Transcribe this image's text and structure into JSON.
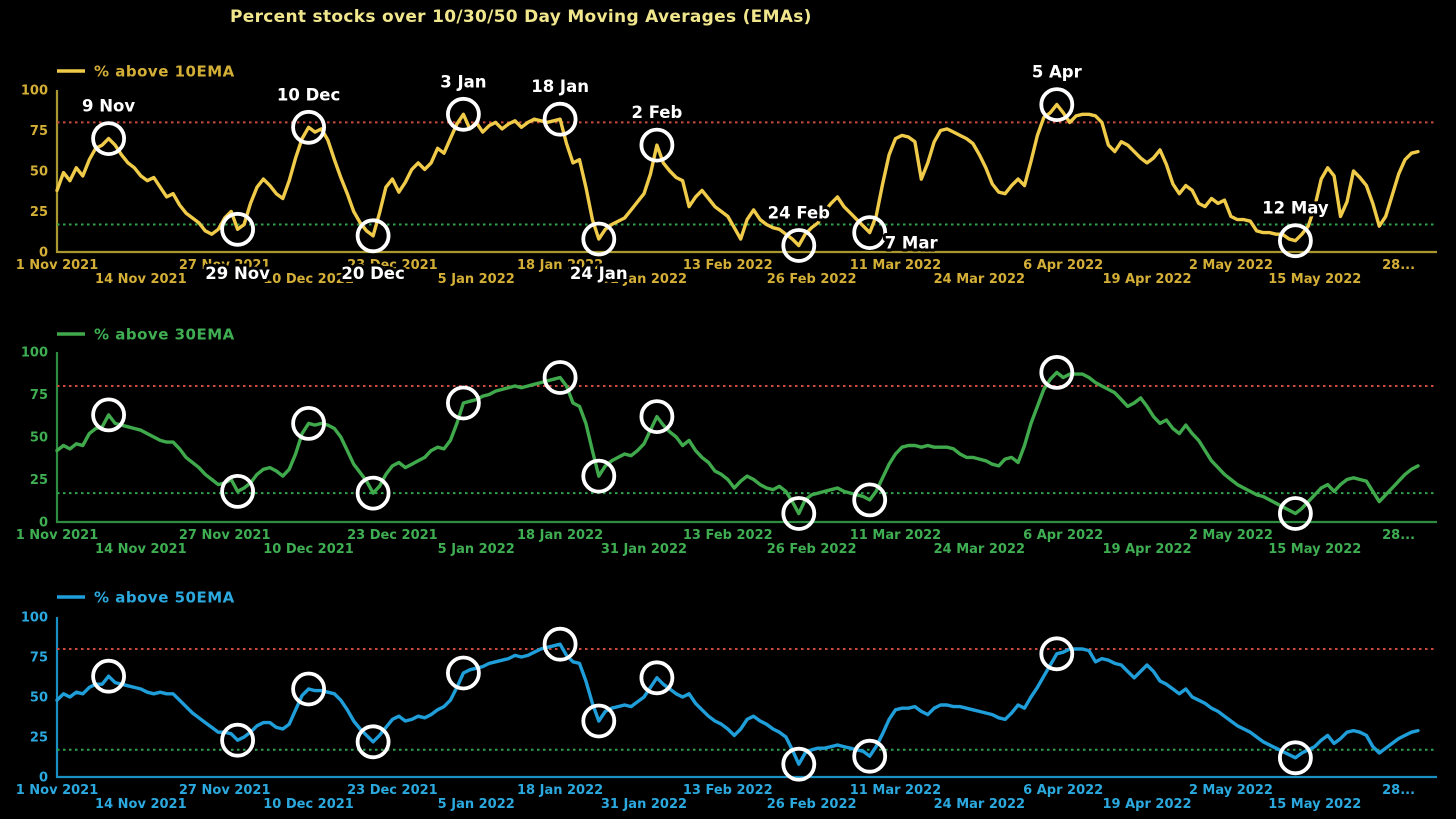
{
  "page": {
    "background": "#000000"
  },
  "title": {
    "text": "Percent stocks over 10/30/50 Day Moving Averages (EMAs)",
    "color": "#F0E68C"
  },
  "axis": {
    "x_tick_labels": [
      "1 Nov 2021",
      "14 Nov 2021",
      "27 Nov 2021",
      "10 Dec 2021",
      "23 Dec 2021",
      "5 Jan 2022",
      "18 Jan 2022",
      "31 Jan 2022",
      "13 Feb 2022",
      "26 Feb 2022",
      "11 Mar 2022",
      "24 Mar 2022",
      "6 Apr 2022",
      "19 Apr 2022",
      "2 May 2022",
      "15 May 2022",
      "28..."
    ],
    "x_tick_interval_days": 13,
    "y_tick_labels": [
      "0",
      "25",
      "50",
      "75",
      "100"
    ],
    "ylim": [
      0,
      100
    ]
  },
  "thresholds": {
    "upper": 80,
    "lower": 17,
    "upper_color": "#CC4A3D",
    "lower_color": "#2FA34D"
  },
  "markers": {
    "days": [
      8,
      28,
      39,
      49,
      63,
      78,
      84,
      93,
      115,
      126,
      155,
      192
    ],
    "dates": [
      "9 Nov",
      "29 Nov",
      "10 Dec",
      "20 Dec",
      "3 Jan",
      "18 Jan",
      "24 Jan",
      "2 Feb",
      "24 Feb",
      "7 Mar",
      "5 Apr",
      "12 May"
    ],
    "color": "#FFFFFF"
  },
  "annotation_color": "#FFFFFF",
  "chart_data": [
    {
      "type": "line",
      "name": "10ema",
      "legend": "% above 10EMA",
      "line_color": "#F0CB4A",
      "label_color": "#D4AF37",
      "axis_color": "#A9982F",
      "x_start": "1 Nov 2021",
      "ylim": [
        0,
        100
      ],
      "annotations": [
        {
          "label": "9 Nov",
          "day": 8,
          "pos": "above"
        },
        {
          "label": "29 Nov",
          "day": 28,
          "pos": "below"
        },
        {
          "label": "10 Dec",
          "day": 39,
          "pos": "above"
        },
        {
          "label": "20 Dec",
          "day": 49,
          "pos": "below"
        },
        {
          "label": "3 Jan",
          "day": 63,
          "pos": "above"
        },
        {
          "label": "18 Jan",
          "day": 78,
          "pos": "above"
        },
        {
          "label": "24 Jan",
          "day": 84,
          "pos": "below"
        },
        {
          "label": "2 Feb",
          "day": 93,
          "pos": "above"
        },
        {
          "label": "24 Feb",
          "day": 115,
          "pos": "above"
        },
        {
          "label": "7 Mar",
          "day": 126,
          "pos": "right"
        },
        {
          "label": "5 Apr",
          "day": 155,
          "pos": "above"
        },
        {
          "label": "12 May",
          "day": 192,
          "pos": "above"
        }
      ],
      "values": [
        38,
        49,
        44,
        52,
        47,
        57,
        64,
        66,
        70,
        66,
        60,
        55,
        52,
        47,
        44,
        46,
        40,
        34,
        36,
        29,
        24,
        21,
        18,
        13,
        11,
        14,
        21,
        25,
        14,
        17,
        30,
        40,
        45,
        41,
        36,
        33,
        44,
        58,
        70,
        77,
        74,
        76,
        69,
        57,
        46,
        36,
        25,
        18,
        13,
        10,
        24,
        40,
        45,
        37,
        43,
        51,
        55,
        51,
        55,
        64,
        61,
        70,
        79,
        85,
        76,
        80,
        74,
        78,
        80,
        76,
        79,
        81,
        77,
        80,
        82,
        81,
        80,
        81,
        82,
        67,
        55,
        57,
        40,
        20,
        8,
        14,
        17,
        19,
        21,
        26,
        31,
        36,
        48,
        66,
        55,
        50,
        46,
        44,
        28,
        34,
        38,
        33,
        28,
        25,
        22,
        15,
        8,
        20,
        26,
        20,
        17,
        15,
        14,
        11,
        8,
        4,
        11,
        15,
        18,
        25,
        30,
        34,
        28,
        24,
        20,
        16,
        12,
        22,
        42,
        60,
        70,
        72,
        71,
        68,
        45,
        55,
        68,
        75,
        76,
        74,
        72,
        70,
        67,
        60,
        52,
        42,
        37,
        36,
        41,
        45,
        41,
        56,
        72,
        83,
        86,
        91,
        86,
        80,
        84,
        85,
        85,
        84,
        80,
        66,
        62,
        68,
        66,
        62,
        58,
        55,
        58,
        63,
        54,
        42,
        36,
        41,
        38,
        30,
        28,
        33,
        30,
        32,
        22,
        20,
        20,
        19,
        13,
        12,
        12,
        11,
        11,
        8,
        7,
        11,
        16,
        28,
        45,
        52,
        47,
        22,
        31,
        50,
        46,
        41,
        30,
        16,
        22,
        35,
        48,
        57,
        61,
        62
      ]
    },
    {
      "type": "line",
      "name": "30ema",
      "legend": "% above 30EMA",
      "line_color": "#3FA94C",
      "label_color": "#3FAE52",
      "axis_color": "#2E8C41",
      "x_start": "1 Nov 2021",
      "ylim": [
        0,
        100
      ],
      "annotations": [],
      "values": [
        42,
        45,
        43,
        46,
        45,
        52,
        55,
        56,
        63,
        58,
        57,
        56,
        55,
        54,
        52,
        50,
        48,
        47,
        47,
        43,
        38,
        35,
        32,
        28,
        25,
        22,
        23,
        25,
        18,
        20,
        23,
        28,
        31,
        32,
        30,
        27,
        31,
        40,
        52,
        58,
        57,
        58,
        57,
        55,
        50,
        42,
        34,
        29,
        24,
        17,
        21,
        28,
        33,
        35,
        32,
        34,
        36,
        38,
        42,
        44,
        43,
        48,
        58,
        70,
        71,
        72,
        74,
        75,
        77,
        78,
        79,
        80,
        79,
        80,
        81,
        82,
        83,
        84,
        85,
        80,
        70,
        68,
        58,
        42,
        27,
        33,
        36,
        38,
        40,
        39,
        42,
        46,
        54,
        62,
        57,
        53,
        50,
        45,
        48,
        42,
        38,
        35,
        30,
        28,
        25,
        20,
        24,
        27,
        25,
        22,
        20,
        19,
        21,
        18,
        12,
        5,
        13,
        16,
        17,
        18,
        19,
        20,
        18,
        17,
        16,
        15,
        13,
        18,
        26,
        34,
        40,
        44,
        45,
        45,
        44,
        45,
        44,
        44,
        44,
        43,
        40,
        38,
        38,
        37,
        36,
        34,
        33,
        37,
        38,
        35,
        45,
        58,
        68,
        78,
        84,
        88,
        85,
        87,
        87,
        87,
        85,
        82,
        80,
        78,
        76,
        72,
        68,
        70,
        73,
        68,
        62,
        58,
        60,
        55,
        52,
        57,
        52,
        48,
        42,
        36,
        32,
        28,
        25,
        22,
        20,
        18,
        16,
        15,
        13,
        11,
        9,
        7,
        5,
        8,
        12,
        16,
        20,
        22,
        18,
        22,
        25,
        26,
        25,
        24,
        18,
        12,
        16,
        20,
        24,
        28,
        31,
        33
      ]
    },
    {
      "type": "line",
      "name": "50ema",
      "legend": "% above 50EMA",
      "line_color": "#1F9ED9",
      "label_color": "#2BA9DF",
      "axis_color": "#1890C4",
      "x_start": "1 Nov 2021",
      "ylim": [
        0,
        100
      ],
      "annotations": [],
      "values": [
        48,
        52,
        50,
        53,
        52,
        56,
        58,
        58,
        63,
        59,
        58,
        57,
        56,
        55,
        53,
        52,
        53,
        52,
        52,
        48,
        44,
        40,
        37,
        34,
        31,
        28,
        28,
        27,
        23,
        25,
        28,
        32,
        34,
        34,
        31,
        30,
        33,
        42,
        51,
        55,
        54,
        54,
        53,
        52,
        48,
        42,
        35,
        30,
        26,
        22,
        26,
        31,
        36,
        38,
        35,
        36,
        38,
        37,
        39,
        42,
        44,
        48,
        56,
        65,
        67,
        68,
        69,
        71,
        72,
        73,
        74,
        76,
        75,
        76,
        78,
        80,
        81,
        82,
        83,
        76,
        72,
        71,
        60,
        46,
        35,
        41,
        43,
        44,
        45,
        44,
        47,
        50,
        56,
        62,
        58,
        55,
        52,
        50,
        52,
        46,
        42,
        38,
        35,
        33,
        30,
        26,
        30,
        36,
        38,
        35,
        33,
        30,
        28,
        25,
        17,
        8,
        15,
        17,
        18,
        18,
        19,
        20,
        19,
        18,
        17,
        16,
        13,
        19,
        27,
        36,
        42,
        43,
        43,
        44,
        41,
        39,
        43,
        45,
        45,
        44,
        44,
        43,
        42,
        41,
        40,
        39,
        37,
        36,
        40,
        45,
        43,
        50,
        56,
        63,
        70,
        77,
        78,
        80,
        80,
        80,
        79,
        72,
        74,
        73,
        71,
        70,
        66,
        62,
        66,
        70,
        66,
        60,
        58,
        55,
        52,
        55,
        50,
        48,
        46,
        43,
        41,
        38,
        35,
        32,
        30,
        28,
        25,
        22,
        20,
        18,
        16,
        14,
        12,
        15,
        17,
        19,
        23,
        26,
        21,
        24,
        28,
        29,
        28,
        26,
        19,
        15,
        18,
        21,
        24,
        26,
        28,
        29
      ]
    }
  ]
}
